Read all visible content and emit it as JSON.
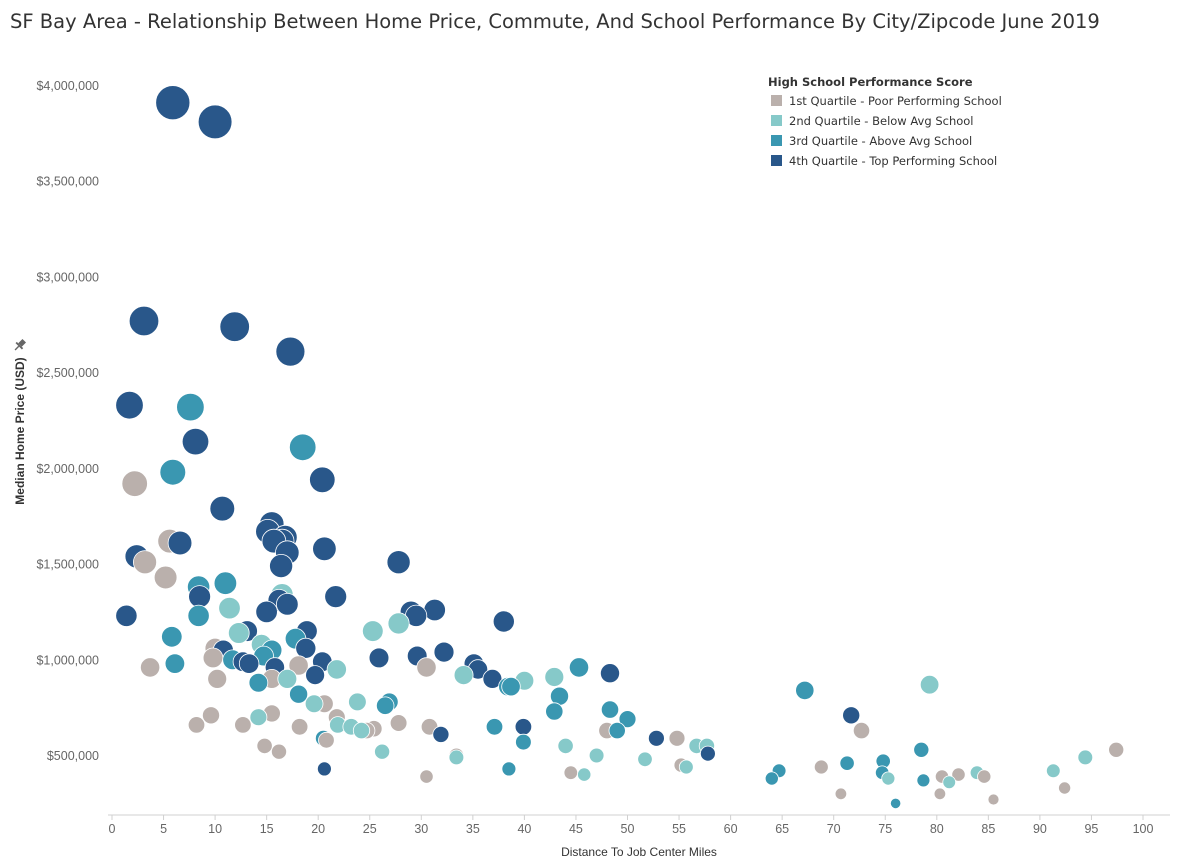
{
  "page": {
    "title": "SF Bay Area - Relationship Between Home Price, Commute, And School Performance By City/Zipcode June 2019"
  },
  "chart_data": {
    "type": "scatter",
    "title": "SF Bay Area - Relationship Between Home Price, Commute, And School Performance By City/Zipcode June 2019",
    "xlabel": "Distance To Job Center Miles",
    "ylabel": "Median Home Price (USD)",
    "xlim": [
      -1,
      101
    ],
    "ylim": [
      200000,
      4150000
    ],
    "x_ticks": [
      0,
      5,
      10,
      15,
      20,
      25,
      30,
      35,
      40,
      45,
      50,
      55,
      60,
      65,
      70,
      75,
      80,
      85,
      90,
      95,
      100
    ],
    "x_tick_labels": [
      "0",
      "5",
      "10",
      "15",
      "20",
      "25",
      "30",
      "35",
      "40",
      "45",
      "50",
      "55",
      "60",
      "65",
      "70",
      "75",
      "80",
      "85",
      "90",
      "95",
      "100"
    ],
    "y_ticks": [
      500000,
      1000000,
      1500000,
      2000000,
      2500000,
      3000000,
      3500000,
      4000000
    ],
    "y_tick_labels": [
      "$500,000",
      "$1,000,000",
      "$1,500,000",
      "$2,000,000",
      "$2,500,000",
      "$3,000,000",
      "$3,500,000",
      "$4,000,000"
    ],
    "grid": false,
    "marker_size_encodes": "Median Home Price (USD)",
    "legend": {
      "title": "High  School Performance Score",
      "position": "top-right"
    },
    "series": [
      {
        "name": "1st Quartile - Poor Performing School",
        "color": "#bab0ac",
        "points": [
          [
            2.2,
            1920000
          ],
          [
            5.6,
            1620000
          ],
          [
            3.2,
            1510000
          ],
          [
            5.2,
            1430000
          ],
          [
            3.7,
            960000
          ],
          [
            9.8,
            1010000
          ],
          [
            10.0,
            1060000
          ],
          [
            10.2,
            900000
          ],
          [
            18.1,
            970000
          ],
          [
            15.5,
            900000
          ],
          [
            30.5,
            960000
          ],
          [
            8.2,
            660000
          ],
          [
            9.6,
            710000
          ],
          [
            12.7,
            660000
          ],
          [
            15.5,
            720000
          ],
          [
            18.2,
            650000
          ],
          [
            20.6,
            770000
          ],
          [
            21.8,
            700000
          ],
          [
            20.8,
            580000
          ],
          [
            25.4,
            640000
          ],
          [
            24.7,
            630000
          ],
          [
            27.8,
            670000
          ],
          [
            30.8,
            650000
          ],
          [
            14.8,
            550000
          ],
          [
            16.2,
            520000
          ],
          [
            33.4,
            500000
          ],
          [
            30.5,
            390000
          ],
          [
            44.5,
            410000
          ],
          [
            48.0,
            630000
          ],
          [
            54.8,
            590000
          ],
          [
            55.2,
            450000
          ],
          [
            68.8,
            440000
          ],
          [
            72.7,
            630000
          ],
          [
            70.7,
            300000
          ],
          [
            80.3,
            300000
          ],
          [
            80.5,
            390000
          ],
          [
            82.1,
            400000
          ],
          [
            84.6,
            390000
          ],
          [
            85.5,
            270000
          ],
          [
            92.4,
            330000
          ],
          [
            97.4,
            530000
          ]
        ]
      },
      {
        "name": "2nd Quartile - Below Avg School",
        "color": "#86c9c9",
        "points": [
          [
            11.4,
            1270000
          ],
          [
            12.3,
            1140000
          ],
          [
            14.5,
            1080000
          ],
          [
            14.2,
            700000
          ],
          [
            16.5,
            1340000
          ],
          [
            17.0,
            900000
          ],
          [
            19.6,
            770000
          ],
          [
            21.8,
            950000
          ],
          [
            21.9,
            660000
          ],
          [
            23.2,
            650000
          ],
          [
            23.8,
            780000
          ],
          [
            24.2,
            630000
          ],
          [
            25.3,
            1150000
          ],
          [
            26.2,
            520000
          ],
          [
            27.8,
            1190000
          ],
          [
            33.4,
            490000
          ],
          [
            34.1,
            920000
          ],
          [
            40.0,
            890000
          ],
          [
            42.9,
            910000
          ],
          [
            44.0,
            550000
          ],
          [
            45.8,
            400000
          ],
          [
            47.0,
            500000
          ],
          [
            51.7,
            480000
          ],
          [
            55.7,
            440000
          ],
          [
            56.7,
            550000
          ],
          [
            57.7,
            550000
          ],
          [
            75.3,
            380000
          ],
          [
            79.3,
            870000
          ],
          [
            81.2,
            360000
          ],
          [
            83.9,
            410000
          ],
          [
            91.3,
            420000
          ],
          [
            94.4,
            490000
          ]
        ]
      },
      {
        "name": "3rd Quartile - Above Avg School",
        "color": "#3a97b1",
        "points": [
          [
            7.6,
            2320000
          ],
          [
            5.9,
            1980000
          ],
          [
            18.5,
            2110000
          ],
          [
            8.4,
            1380000
          ],
          [
            11.0,
            1400000
          ],
          [
            8.4,
            1230000
          ],
          [
            5.8,
            1120000
          ],
          [
            6.1,
            980000
          ],
          [
            11.7,
            1000000
          ],
          [
            14.7,
            1020000
          ],
          [
            15.5,
            1050000
          ],
          [
            17.8,
            1110000
          ],
          [
            14.2,
            880000
          ],
          [
            18.1,
            820000
          ],
          [
            20.5,
            590000
          ],
          [
            26.5,
            760000
          ],
          [
            26.9,
            780000
          ],
          [
            37.1,
            650000
          ],
          [
            38.4,
            860000
          ],
          [
            38.7,
            860000
          ],
          [
            38.5,
            430000
          ],
          [
            39.9,
            570000
          ],
          [
            42.9,
            730000
          ],
          [
            43.4,
            810000
          ],
          [
            45.3,
            960000
          ],
          [
            48.3,
            740000
          ],
          [
            49.0,
            630000
          ],
          [
            50.0,
            690000
          ],
          [
            64.0,
            380000
          ],
          [
            64.7,
            420000
          ],
          [
            67.2,
            840000
          ],
          [
            71.3,
            460000
          ],
          [
            74.7,
            410000
          ],
          [
            74.8,
            470000
          ],
          [
            76.0,
            250000
          ],
          [
            78.5,
            530000
          ],
          [
            78.7,
            370000
          ]
        ]
      },
      {
        "name": "4th Quartile - Top Performing School",
        "color": "#29578a",
        "points": [
          [
            5.9,
            3910000
          ],
          [
            10.0,
            3810000
          ],
          [
            3.1,
            2770000
          ],
          [
            11.9,
            2740000
          ],
          [
            17.3,
            2610000
          ],
          [
            1.7,
            2330000
          ],
          [
            8.1,
            2140000
          ],
          [
            20.4,
            1940000
          ],
          [
            10.7,
            1790000
          ],
          [
            6.6,
            1610000
          ],
          [
            2.4,
            1540000
          ],
          [
            15.5,
            1710000
          ],
          [
            15.1,
            1670000
          ],
          [
            16.8,
            1640000
          ],
          [
            17.0,
            1560000
          ],
          [
            16.5,
            1620000
          ],
          [
            16.4,
            1490000
          ],
          [
            15.7,
            1620000
          ],
          [
            20.6,
            1580000
          ],
          [
            27.8,
            1510000
          ],
          [
            1.4,
            1230000
          ],
          [
            8.5,
            1330000
          ],
          [
            13.1,
            1150000
          ],
          [
            15.0,
            1250000
          ],
          [
            16.2,
            1310000
          ],
          [
            17.0,
            1290000
          ],
          [
            21.7,
            1330000
          ],
          [
            10.8,
            1050000
          ],
          [
            12.7,
            990000
          ],
          [
            13.3,
            980000
          ],
          [
            15.8,
            960000
          ],
          [
            18.8,
            1060000
          ],
          [
            18.9,
            1150000
          ],
          [
            19.7,
            920000
          ],
          [
            20.4,
            990000
          ],
          [
            25.9,
            1010000
          ],
          [
            29.0,
            1250000
          ],
          [
            29.5,
            1230000
          ],
          [
            31.3,
            1260000
          ],
          [
            29.6,
            1020000
          ],
          [
            32.2,
            1040000
          ],
          [
            35.1,
            980000
          ],
          [
            35.5,
            950000
          ],
          [
            36.9,
            900000
          ],
          [
            38.0,
            1200000
          ],
          [
            20.6,
            430000
          ],
          [
            31.9,
            610000
          ],
          [
            39.9,
            650000
          ],
          [
            48.3,
            930000
          ],
          [
            52.8,
            590000
          ],
          [
            57.8,
            510000
          ],
          [
            71.7,
            710000
          ]
        ]
      }
    ]
  }
}
